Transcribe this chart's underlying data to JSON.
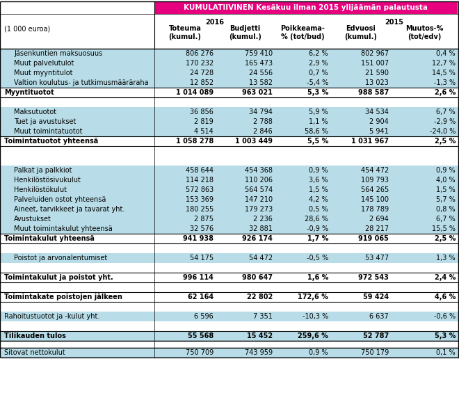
{
  "title": "KUMULATIIVINEN Kesäkuu ilman 2015 ylijäämän palautusta",
  "pink": "#e6007e",
  "light_blue": "#b8dde8",
  "white": "#ffffff",
  "rows": [
    {
      "label": "Jäsenkuntien maksuosuus",
      "v": [
        "806 276",
        "759 410",
        "6,2 %",
        "802 967",
        "0,4 %"
      ],
      "bold": false,
      "bg": "lb",
      "indent": true,
      "empty": false
    },
    {
      "label": "Muut palvelutulot",
      "v": [
        "170 232",
        "165 473",
        "2,9 %",
        "151 007",
        "12,7 %"
      ],
      "bold": false,
      "bg": "lb",
      "indent": true,
      "empty": false
    },
    {
      "label": "Muut myyntitulot",
      "v": [
        "24 728",
        "24 556",
        "0,7 %",
        "21 590",
        "14,5 %"
      ],
      "bold": false,
      "bg": "lb",
      "indent": true,
      "empty": false
    },
    {
      "label": "Valtion koulutus- ja tutkimusmääräraha",
      "v": [
        "12 852",
        "13 582",
        "-5,4 %",
        "13 023",
        "-1,3 %"
      ],
      "bold": false,
      "bg": "lb",
      "indent": true,
      "empty": false
    },
    {
      "label": "Myyntituotot",
      "v": [
        "1 014 089",
        "963 021",
        "5,3 %",
        "988 587",
        "2,6 %"
      ],
      "bold": true,
      "bg": "wh",
      "indent": false,
      "empty": false,
      "border_top": true,
      "border_bot": true
    },
    {
      "label": "",
      "v": [
        "",
        "",
        "",
        "",
        ""
      ],
      "bold": false,
      "bg": "wh",
      "indent": false,
      "empty": true
    },
    {
      "label": "Maksutuotot",
      "v": [
        "36 856",
        "34 794",
        "5,9 %",
        "34 534",
        "6,7 %"
      ],
      "bold": false,
      "bg": "lb",
      "indent": true,
      "empty": false
    },
    {
      "label": "Tuet ja avustukset",
      "v": [
        "2 819",
        "2 788",
        "1,1 %",
        "2 904",
        "-2,9 %"
      ],
      "bold": false,
      "bg": "lb",
      "indent": true,
      "empty": false
    },
    {
      "label": "Muut toimintatuotot",
      "v": [
        "4 514",
        "2 846",
        "58,6 %",
        "5 941",
        "-24,0 %"
      ],
      "bold": false,
      "bg": "lb",
      "indent": true,
      "empty": false
    },
    {
      "label": "Toimintatuotot yhteensä",
      "v": [
        "1 058 278",
        "1 003 449",
        "5,5 %",
        "1 031 967",
        "2,5 %"
      ],
      "bold": true,
      "bg": "wh",
      "indent": false,
      "empty": false,
      "border_top": true,
      "border_bot": true
    },
    {
      "label": "",
      "v": [
        "",
        "",
        "",
        "",
        ""
      ],
      "bold": false,
      "bg": "wh",
      "indent": false,
      "empty": true
    },
    {
      "label": "",
      "v": [
        "",
        "",
        "",
        "",
        ""
      ],
      "bold": false,
      "bg": "wh",
      "indent": false,
      "empty": true
    },
    {
      "label": "Palkat ja palkkiot",
      "v": [
        "458 644",
        "454 368",
        "0,9 %",
        "454 472",
        "0,9 %"
      ],
      "bold": false,
      "bg": "lb",
      "indent": true,
      "empty": false
    },
    {
      "label": "Henkilöstösivukulut",
      "v": [
        "114 218",
        "110 206",
        "3,6 %",
        "109 793",
        "4,0 %"
      ],
      "bold": false,
      "bg": "lb",
      "indent": true,
      "empty": false
    },
    {
      "label": "Henkilöstökulut",
      "v": [
        "572 863",
        "564 574",
        "1,5 %",
        "564 265",
        "1,5 %"
      ],
      "bold": false,
      "bg": "lb",
      "indent": true,
      "empty": false
    },
    {
      "label": "Palveluiden ostot yhteensä",
      "v": [
        "153 369",
        "147 210",
        "4,2 %",
        "145 100",
        "5,7 %"
      ],
      "bold": false,
      "bg": "lb",
      "indent": true,
      "empty": false
    },
    {
      "label": "Aineet, tarvikkeet ja tavarat yht.",
      "v": [
        "180 255",
        "179 273",
        "0,5 %",
        "178 789",
        "0,8 %"
      ],
      "bold": false,
      "bg": "lb",
      "indent": true,
      "empty": false
    },
    {
      "label": "Avustukset",
      "v": [
        "2 875",
        "2 236",
        "28,6 %",
        "2 694",
        "6,7 %"
      ],
      "bold": false,
      "bg": "lb",
      "indent": true,
      "empty": false
    },
    {
      "label": "Muut toimintakulut yhteensä",
      "v": [
        "32 576",
        "32 881",
        "-0,9 %",
        "28 217",
        "15,5 %"
      ],
      "bold": false,
      "bg": "lb",
      "indent": true,
      "empty": false
    },
    {
      "label": "Toimintakulut yhteensä",
      "v": [
        "941 938",
        "926 174",
        "1,7 %",
        "919 065",
        "2,5 %"
      ],
      "bold": true,
      "bg": "wh",
      "indent": false,
      "empty": false,
      "border_top": true,
      "border_bot": true
    },
    {
      "label": "",
      "v": [
        "",
        "",
        "",
        "",
        ""
      ],
      "bold": false,
      "bg": "wh",
      "indent": false,
      "empty": true
    },
    {
      "label": "Poistot ja arvonalentumiset",
      "v": [
        "54 175",
        "54 472",
        "-0,5 %",
        "53 477",
        "1,3 %"
      ],
      "bold": false,
      "bg": "lb",
      "indent": true,
      "empty": false
    },
    {
      "label": "",
      "v": [
        "",
        "",
        "",
        "",
        ""
      ],
      "bold": false,
      "bg": "wh",
      "indent": false,
      "empty": true
    },
    {
      "label": "Toimintakulut ja poistot yht.",
      "v": [
        "996 114",
        "980 647",
        "1,6 %",
        "972 543",
        "2,4 %"
      ],
      "bold": true,
      "bg": "wh",
      "indent": false,
      "empty": false,
      "border_top": true,
      "border_bot": true
    },
    {
      "label": "",
      "v": [
        "",
        "",
        "",
        "",
        ""
      ],
      "bold": false,
      "bg": "wh",
      "indent": false,
      "empty": true
    },
    {
      "label": "Toimintakate poistojen jälkeen",
      "v": [
        "62 164",
        "22 802",
        "172,6 %",
        "59 424",
        "4,6 %"
      ],
      "bold": true,
      "bg": "wh",
      "indent": false,
      "empty": false,
      "border_top": true,
      "border_bot": true
    },
    {
      "label": "",
      "v": [
        "",
        "",
        "",
        "",
        ""
      ],
      "bold": false,
      "bg": "wh",
      "indent": false,
      "empty": true
    },
    {
      "label": "Rahoitustuotot ja -kulut yht.",
      "v": [
        "6 596",
        "7 351",
        "-10,3 %",
        "6 637",
        "-0,6 %"
      ],
      "bold": false,
      "bg": "lb",
      "indent": false,
      "empty": false
    },
    {
      "label": "",
      "v": [
        "",
        "",
        "",
        "",
        ""
      ],
      "bold": false,
      "bg": "wh",
      "indent": false,
      "empty": true
    },
    {
      "label": "Tilikauden tulos",
      "v": [
        "55 568",
        "15 452",
        "259,6 %",
        "52 787",
        "5,3 %"
      ],
      "bold": true,
      "bg": "lb",
      "indent": false,
      "empty": false,
      "border_top": true,
      "border_bot": true
    }
  ],
  "bottom_row": {
    "label": "Sitovat nettokulut",
    "v": [
      "750 709",
      "743 959",
      "0,9 %",
      "750 179",
      "0,1 %"
    ]
  }
}
